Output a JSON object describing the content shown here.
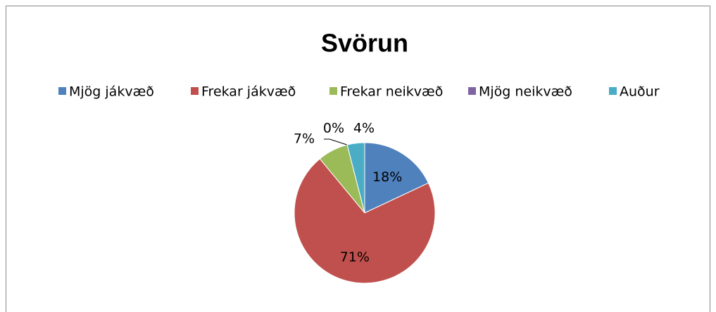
{
  "chart_data": {
    "type": "pie",
    "title": "Svörun",
    "categories": [
      "Mjög jákvæð",
      "Frekar jákvæð",
      "Frekar neikvæð",
      "Mjög neikvæð",
      "Auður"
    ],
    "values": [
      18,
      71,
      7,
      0,
      4
    ],
    "value_labels": [
      "18%",
      "71%",
      "7%",
      "0%",
      "4%"
    ],
    "colors": [
      "#4f81bd",
      "#c0504d",
      "#9bbb59",
      "#8064a2",
      "#4bacc6"
    ],
    "legend": "top"
  }
}
